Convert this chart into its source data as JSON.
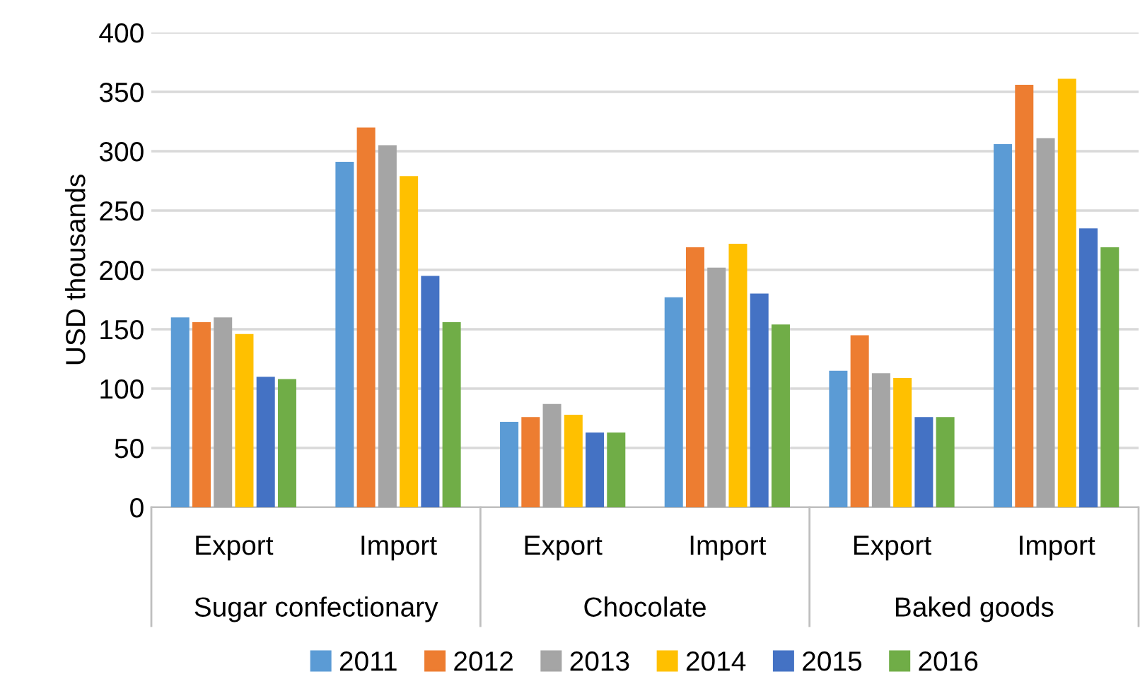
{
  "chart_data": {
    "type": "bar",
    "ylabel": "USD thousands",
    "categories": [
      "Export",
      "Import",
      "Export",
      "Import",
      "Export",
      "Import"
    ],
    "annotations": [
      "Sugar confectionary",
      "Chocolate",
      "Baked goods"
    ],
    "series": [
      {
        "name": "2011",
        "color": "#5b9bd5",
        "values": [
          160,
          291,
          72,
          177,
          115,
          306
        ]
      },
      {
        "name": "2012",
        "color": "#ed7d31",
        "values": [
          156,
          320,
          76,
          219,
          145,
          356
        ]
      },
      {
        "name": "2013",
        "color": "#a5a5a5",
        "values": [
          160,
          305,
          87,
          202,
          113,
          311
        ]
      },
      {
        "name": "2014",
        "color": "#ffc000",
        "values": [
          146,
          279,
          78,
          222,
          109,
          361
        ]
      },
      {
        "name": "2015",
        "color": "#4472c4",
        "values": [
          110,
          195,
          63,
          180,
          76,
          235
        ]
      },
      {
        "name": "2016",
        "color": "#70ad47",
        "values": [
          108,
          156,
          63,
          154,
          76,
          219
        ]
      }
    ],
    "ylim": [
      0,
      400
    ],
    "yticks": [
      0,
      50,
      100,
      150,
      200,
      250,
      300,
      350,
      400
    ],
    "grid": "y",
    "legend": "bottom"
  }
}
